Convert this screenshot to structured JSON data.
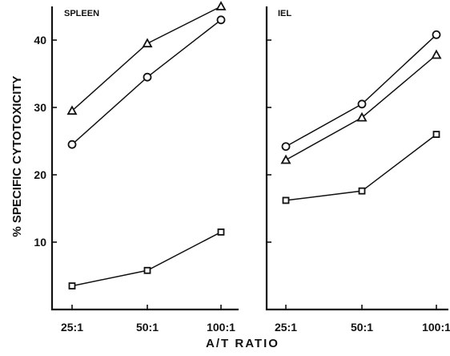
{
  "chart_data": {
    "type": "line",
    "xlabel": "A/T RATIO",
    "ylabel": "% SPECIFIC CYTOTOXICITY",
    "ylim": [
      0,
      45
    ],
    "yticks": [
      10,
      20,
      30,
      40
    ],
    "panels": [
      {
        "title": "SPLEEN",
        "categories": [
          "25:1",
          "50:1",
          "100:1"
        ],
        "series": [
          {
            "marker": "triangle",
            "values": [
              29.5,
              39.5,
              45.0
            ]
          },
          {
            "marker": "circle",
            "values": [
              24.5,
              34.5,
              43.0
            ]
          },
          {
            "marker": "square",
            "values": [
              3.5,
              5.8,
              11.5
            ]
          }
        ]
      },
      {
        "title": "IEL",
        "categories": [
          "25:1",
          "50:1",
          "100:1"
        ],
        "series": [
          {
            "marker": "circle",
            "values": [
              24.2,
              30.5,
              40.8
            ]
          },
          {
            "marker": "triangle",
            "values": [
              22.2,
              28.5,
              37.8
            ]
          },
          {
            "marker": "square",
            "values": [
              16.2,
              17.6,
              26.0
            ]
          }
        ]
      }
    ]
  }
}
